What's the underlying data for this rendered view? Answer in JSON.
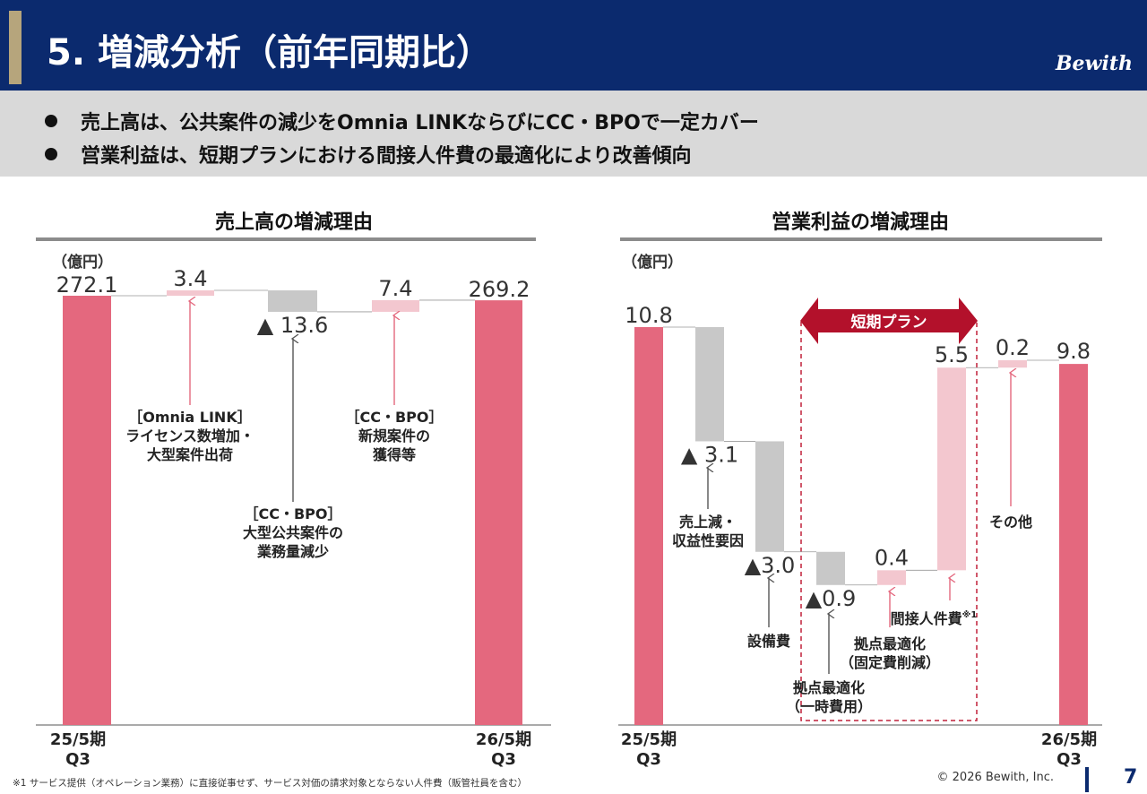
{
  "header": {
    "title": "5. 増減分析（前年同期比）",
    "logo": "Bewith"
  },
  "summary": [
    "売上高は、公共案件の減少をOmnia LINKならびにCC・BPOで一定カバー",
    "営業利益は、短期プランにおける間接人件費の最適化により改善傾向"
  ],
  "colors": {
    "navy": "#0b2a6e",
    "red": "#e4687e",
    "pink": "#f3c7cf",
    "gray": "#c8c8c8",
    "plan_border": "#c0203a"
  },
  "chart_data": [
    {
      "type": "waterfall",
      "title": "売上高の増減理由",
      "unit": "（億円）",
      "start": {
        "label": [
          "25/5期",
          "Q3"
        ],
        "value": 272.1,
        "value_label": "272.1"
      },
      "steps": [
        {
          "value": 3.4,
          "value_label": "3.4",
          "direction": "up",
          "annotation": [
            "［Omnia LINK］",
            "ライセンス数増加・",
            "大型案件出荷"
          ]
        },
        {
          "value": -13.6,
          "value_label": "▲ 13.6",
          "direction": "down",
          "annotation": [
            "［CC・BPO］",
            "大型公共案件の",
            "業務量減少"
          ]
        },
        {
          "value": 7.4,
          "value_label": "7.4",
          "direction": "up",
          "annotation": [
            "［CC・BPO］",
            "新規案件の",
            "獲得等"
          ]
        }
      ],
      "end": {
        "label": [
          "26/5期",
          "Q3"
        ],
        "value": 269.2,
        "value_label": "269.2"
      }
    },
    {
      "type": "waterfall",
      "title": "営業利益の増減理由",
      "unit": "（億円）",
      "start": {
        "label": [
          "25/5期",
          "Q3"
        ],
        "value": 10.8,
        "value_label": "10.8"
      },
      "steps": [
        {
          "value": -3.1,
          "value_label": "▲ 3.1",
          "direction": "down",
          "annotation": [
            "売上減・",
            "収益性要因"
          ]
        },
        {
          "value": -3.0,
          "value_label": "▲3.0",
          "direction": "down",
          "annotation": [
            "設備費"
          ]
        },
        {
          "value": -0.9,
          "value_label": "▲0.9",
          "direction": "down",
          "annotation": [
            "拠点最適化",
            "（一時費用）"
          ]
        },
        {
          "value": 0.4,
          "value_label": "0.4",
          "direction": "up",
          "annotation": [
            "拠点最適化",
            "（固定費削減）"
          ]
        },
        {
          "value": 5.5,
          "value_label": "5.5",
          "direction": "up",
          "annotation": [
            "間接人件費"
          ],
          "annotation_note": "※1"
        },
        {
          "value": 0.2,
          "value_label": "0.2",
          "direction": "up",
          "annotation": [
            "その他"
          ]
        }
      ],
      "end": {
        "label": [
          "26/5期",
          "Q3"
        ],
        "value": 9.8,
        "value_label": "9.8"
      },
      "highlight": {
        "label": "短期プラン",
        "covers_steps": [
          2,
          3,
          4
        ]
      }
    }
  ],
  "footer": {
    "footnote": "※1 サービス提供（オペレーション業務）に直接従事せず、サービス対価の請求対象とならない人件費（販管社員を含む）",
    "copyright": "© 2026 Bewith, Inc.",
    "page": "7"
  }
}
